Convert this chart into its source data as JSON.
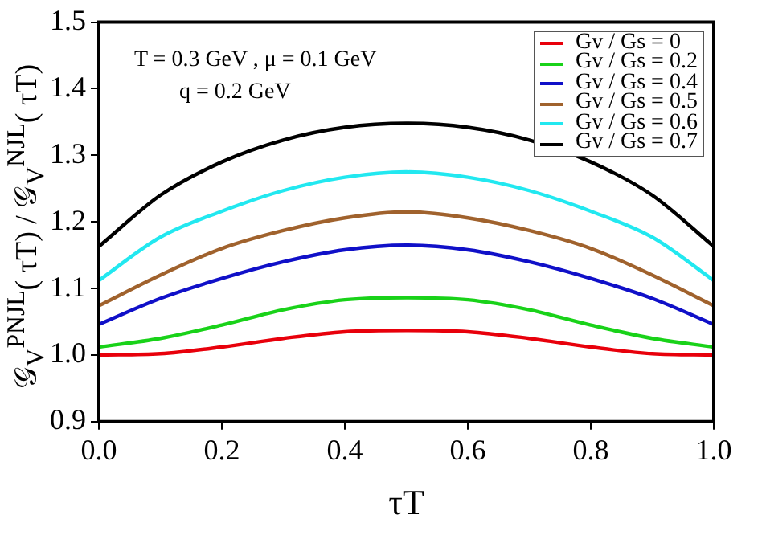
{
  "chart_data": {
    "type": "line",
    "xlabel": "τT",
    "ylabel": "𝒢$_{V}$$^{PNJL}$( τT) / 𝒢$_{V}$$^{NJL}$( τT)",
    "annotations": [
      "T = 0.3 GeV ,  μ = 0.1 GeV",
      "q = 0.2 GeV"
    ],
    "x": [
      0,
      0.1,
      0.2,
      0.3,
      0.4,
      0.5,
      0.6,
      0.7,
      0.8,
      0.9,
      1.0
    ],
    "series": [
      {
        "name": "Gv / Gs = 0",
        "color": "#e8000b",
        "values": [
          1.0,
          1.002,
          1.012,
          1.025,
          1.035,
          1.037,
          1.035,
          1.025,
          1.012,
          1.002,
          1.0
        ]
      },
      {
        "name": "Gv / Gs = 0.2",
        "color": "#19d219",
        "values": [
          1.012,
          1.025,
          1.045,
          1.068,
          1.083,
          1.086,
          1.083,
          1.068,
          1.045,
          1.025,
          1.012
        ]
      },
      {
        "name": "Gv / Gs = 0.4",
        "color": "#1010c8",
        "values": [
          1.046,
          1.085,
          1.115,
          1.14,
          1.158,
          1.165,
          1.158,
          1.14,
          1.115,
          1.085,
          1.046
        ]
      },
      {
        "name": "Gv / Gs = 0.5",
        "color": "#a0622d",
        "values": [
          1.074,
          1.12,
          1.16,
          1.187,
          1.206,
          1.215,
          1.206,
          1.187,
          1.16,
          1.12,
          1.074
        ]
      },
      {
        "name": "Gv / Gs = 0.6",
        "color": "#22e8f0",
        "values": [
          1.112,
          1.177,
          1.216,
          1.247,
          1.267,
          1.275,
          1.267,
          1.247,
          1.216,
          1.177,
          1.112
        ]
      },
      {
        "name": "Gv / Gs = 0.7",
        "color": "#000000",
        "values": [
          1.163,
          1.24,
          1.29,
          1.323,
          1.342,
          1.348,
          1.342,
          1.323,
          1.29,
          1.24,
          1.163
        ]
      }
    ],
    "xlim": [
      0,
      1
    ],
    "xticks": [
      {
        "value": 0,
        "label": "0.0"
      },
      0.2,
      0.4,
      0.6,
      0.8,
      {
        "value": 1,
        "label": "1.0"
      }
    ],
    "ylim": [
      0.9,
      1.5
    ],
    "yticks": [
      0.9,
      {
        "value": 1,
        "label": "1.0"
      },
      1.1,
      1.2,
      1.3,
      1.4,
      1.5
    ],
    "legend": "top right",
    "marker": "none",
    "line_style": "solid"
  }
}
